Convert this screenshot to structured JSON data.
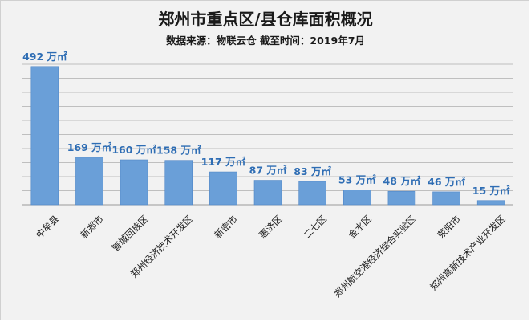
{
  "chart_data": {
    "type": "bar",
    "title": "郑州市重点区/县仓库面积概况",
    "subtitle": "数据来源：物联云仓  截至时间：2019年7月",
    "categories": [
      "中牟县",
      "新郑市",
      "管城回族区",
      "郑州经济技术开发区",
      "新密市",
      "惠济区",
      "二七区",
      "金水区",
      "郑州航空港经济综合实验区",
      "荥阳市",
      "郑州高新技术产业开发区"
    ],
    "values": [
      492,
      169,
      160,
      158,
      117,
      87,
      83,
      53,
      48,
      46,
      15
    ],
    "data_labels": [
      "492 万㎡",
      "169 万㎡",
      "160 万㎡",
      "158 万㎡",
      "117 万㎡",
      "87 万㎡",
      "83 万㎡",
      "53 万㎡",
      "48 万㎡",
      "46 万㎡",
      "15 万㎡"
    ],
    "ylim": [
      0,
      500
    ],
    "grid": true,
    "colors": {
      "bar": "#6a9fd8",
      "bar_edge": "#4f86c6",
      "label": "#2e6db4",
      "grid": "#bfbfbf"
    }
  }
}
